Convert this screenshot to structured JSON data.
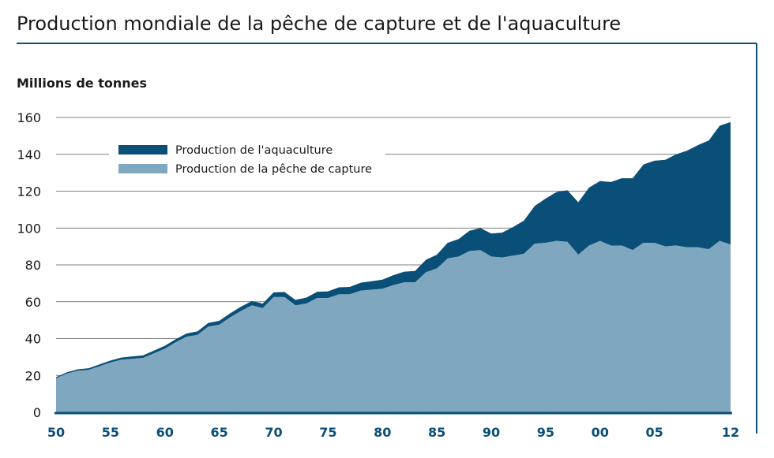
{
  "header": {
    "title": "Production mondiale de la pêche de capture et de l'aquaculture"
  },
  "chart_data": {
    "type": "area",
    "stacked": true,
    "ylabel": "Millions de tonnes",
    "xlabel": "",
    "xlim": [
      1950,
      2012
    ],
    "ylim": [
      0,
      160
    ],
    "yticks": [
      0,
      20,
      40,
      60,
      80,
      100,
      120,
      140,
      160
    ],
    "xticks": [
      1950,
      1955,
      1960,
      1965,
      1970,
      1975,
      1980,
      1985,
      1990,
      1995,
      2000,
      2005,
      2012
    ],
    "xtick_labels": [
      "50",
      "55",
      "60",
      "65",
      "70",
      "75",
      "80",
      "85",
      "90",
      "95",
      "00",
      "05",
      "12"
    ],
    "grid": "horizontal",
    "legend_position": "top-left",
    "colors": {
      "aquaculture": "#0a4f78",
      "capture": "#7fa8c0",
      "axis": "#0a4f78",
      "grid": "#555555"
    },
    "x": [
      1950,
      1951,
      1952,
      1953,
      1954,
      1955,
      1956,
      1957,
      1958,
      1959,
      1960,
      1961,
      1962,
      1963,
      1964,
      1965,
      1966,
      1967,
      1968,
      1969,
      1970,
      1971,
      1972,
      1973,
      1974,
      1975,
      1976,
      1977,
      1978,
      1979,
      1980,
      1981,
      1982,
      1983,
      1984,
      1985,
      1986,
      1987,
      1988,
      1989,
      1990,
      1991,
      1992,
      1993,
      1994,
      1995,
      1996,
      1997,
      1998,
      1999,
      2000,
      2001,
      2002,
      2003,
      2004,
      2005,
      2006,
      2007,
      2008,
      2009,
      2010,
      2011,
      2012
    ],
    "series": [
      {
        "name": "Production de la pêche de capture",
        "values": [
          18.5,
          21.0,
          22.5,
          23.0,
          25.0,
          27.0,
          28.5,
          29.0,
          29.5,
          32.0,
          34.5,
          38.0,
          41.0,
          42.0,
          46.5,
          47.5,
          51.5,
          55.0,
          58.0,
          56.5,
          62.5,
          62.5,
          58.0,
          59.0,
          62.0,
          62.0,
          64.0,
          64.0,
          66.0,
          66.5,
          67.0,
          69.0,
          70.5,
          70.5,
          76.0,
          78.0,
          83.5,
          84.5,
          87.5,
          88.0,
          84.5,
          84.0,
          85.0,
          86.0,
          91.5,
          92.0,
          93.0,
          92.5,
          85.5,
          90.5,
          93.0,
          90.5,
          90.5,
          88.0,
          92.0,
          92.0,
          90.0,
          90.5,
          89.5,
          89.5,
          88.5,
          93.0,
          91.0
        ]
      },
      {
        "name": "Production de l'aquaculture",
        "values": [
          0.6,
          0.7,
          0.8,
          0.9,
          1.0,
          1.1,
          1.2,
          1.3,
          1.4,
          1.5,
          1.6,
          1.7,
          1.8,
          1.9,
          2.0,
          2.1,
          2.2,
          2.3,
          2.4,
          2.5,
          2.6,
          2.8,
          3.0,
          3.2,
          3.4,
          3.6,
          3.8,
          4.0,
          4.3,
          4.6,
          5.0,
          5.4,
          5.8,
          6.2,
          6.8,
          7.5,
          8.5,
          9.5,
          11.0,
          12.0,
          12.5,
          13.5,
          15.5,
          18.0,
          20.5,
          24.0,
          26.5,
          28.0,
          28.5,
          31.5,
          32.5,
          34.5,
          36.5,
          39.0,
          42.5,
          44.5,
          47.0,
          49.5,
          52.5,
          55.5,
          59.0,
          62.5,
          66.5
        ]
      }
    ]
  }
}
